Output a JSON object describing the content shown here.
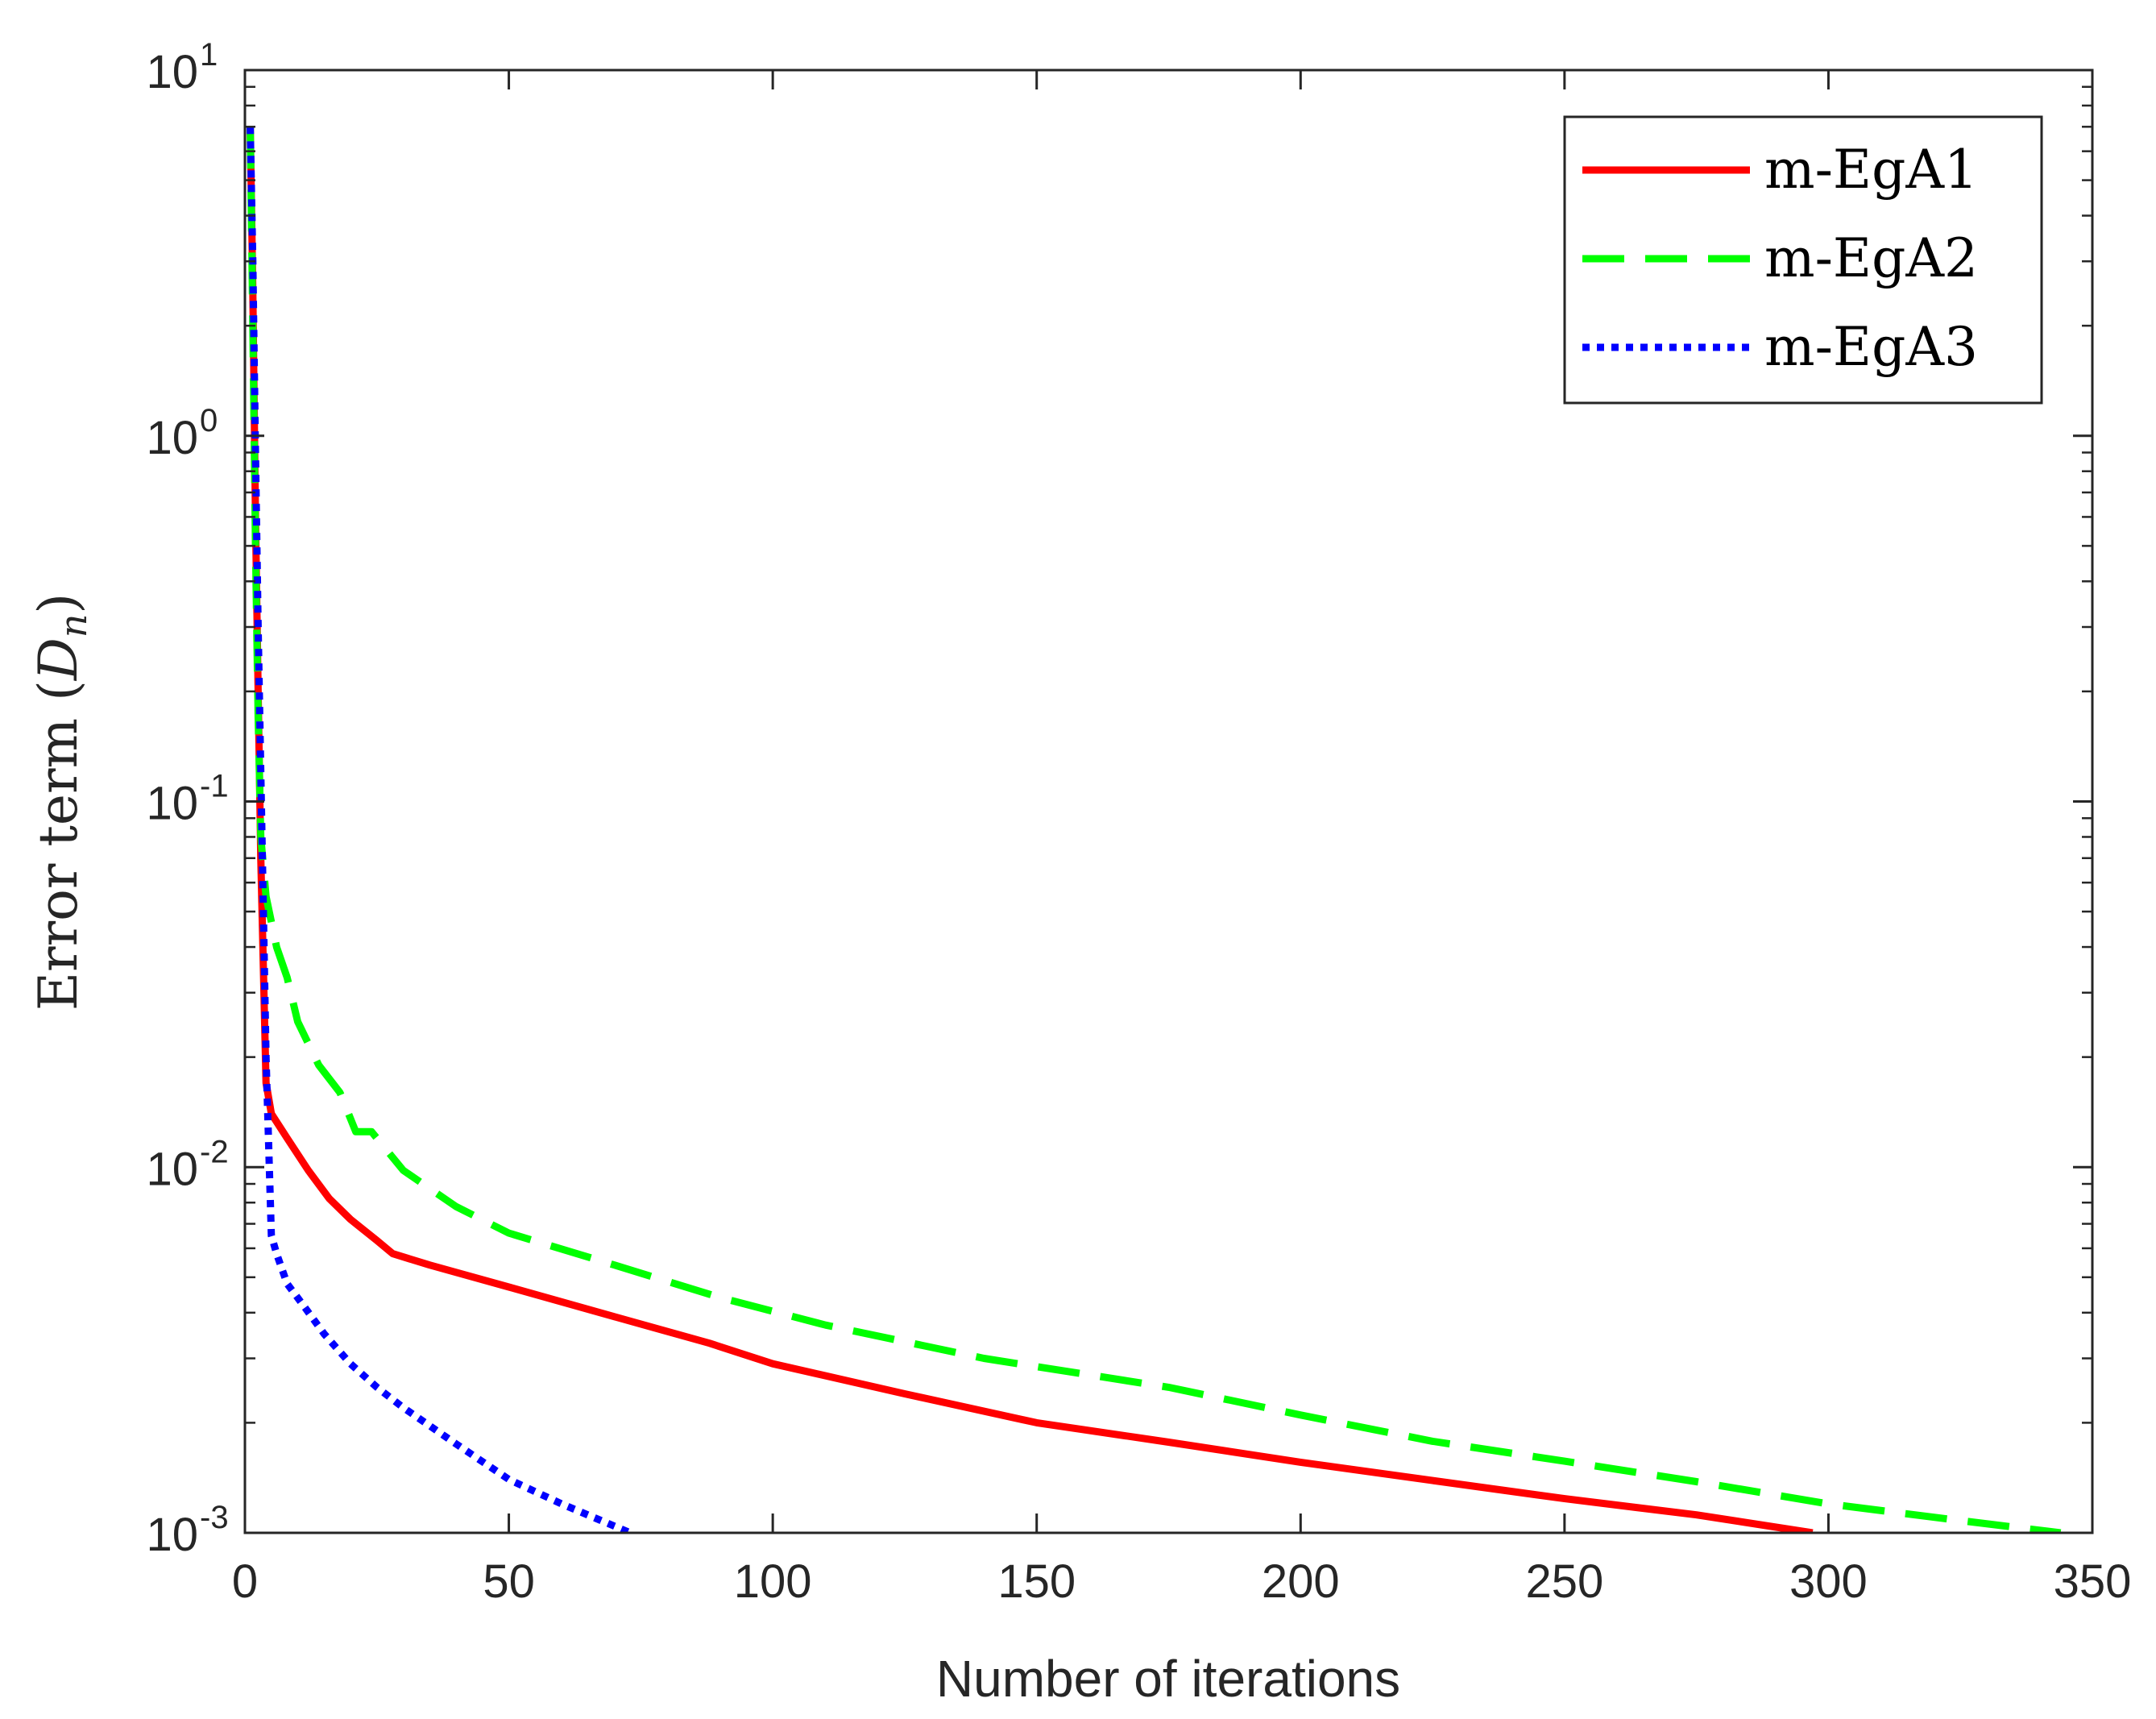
{
  "chart_data": {
    "type": "line",
    "xlabel": "Number of iterations",
    "ylabel": {
      "prefix": "Error term (",
      "symbol": "D",
      "subscript": "n",
      "suffix": ")"
    },
    "x_range": [
      0,
      350
    ],
    "y_range": [
      0.001,
      10
    ],
    "y_scale": "log",
    "grid": false,
    "box": true,
    "legend_position": "top-right",
    "x_ticks": [
      "0",
      "50",
      "100",
      "150",
      "200",
      "250",
      "300",
      "350"
    ],
    "y_ticks": [
      {
        "base": "10",
        "exp": "-3",
        "value": 0.001
      },
      {
        "base": "10",
        "exp": "-2",
        "value": 0.01
      },
      {
        "base": "10",
        "exp": "-1",
        "value": 0.1
      },
      {
        "base": "10",
        "exp": "0",
        "value": 1
      },
      {
        "base": "10",
        "exp": "1",
        "value": 10
      }
    ],
    "series": [
      {
        "name": "m-EgA1",
        "color": "#ff0000",
        "line_style": "solid",
        "points": [
          [
            1,
            7
          ],
          [
            1.5,
            2.5
          ],
          [
            2,
            0.6
          ],
          [
            2.5,
            0.2
          ],
          [
            3,
            0.07
          ],
          [
            3.5,
            0.035
          ],
          [
            4,
            0.017
          ],
          [
            5,
            0.014
          ],
          [
            8,
            0.012
          ],
          [
            12,
            0.0098
          ],
          [
            16,
            0.0082
          ],
          [
            20,
            0.0072
          ],
          [
            25,
            0.0063
          ],
          [
            28,
            0.0058
          ],
          [
            35,
            0.0054
          ],
          [
            50,
            0.0047
          ],
          [
            70,
            0.0039
          ],
          [
            88,
            0.0033
          ],
          [
            100,
            0.0029
          ],
          [
            125,
            0.0024
          ],
          [
            150,
            0.002
          ],
          [
            175,
            0.00177
          ],
          [
            200,
            0.00156
          ],
          [
            225,
            0.00139
          ],
          [
            250,
            0.00124
          ],
          [
            275,
            0.00112
          ],
          [
            297,
            0.001
          ]
        ]
      },
      {
        "name": "m-EgA2",
        "color": "#00ff00",
        "line_style": "dashed",
        "points": [
          [
            1,
            7
          ],
          [
            1.5,
            2.0
          ],
          [
            2,
            0.5
          ],
          [
            2.5,
            0.17
          ],
          [
            3,
            0.08
          ],
          [
            4,
            0.055
          ],
          [
            6,
            0.04
          ],
          [
            8,
            0.033
          ],
          [
            10,
            0.025
          ],
          [
            14,
            0.019
          ],
          [
            18,
            0.016
          ],
          [
            21,
            0.0125
          ],
          [
            24,
            0.0125
          ],
          [
            30,
            0.0098
          ],
          [
            40,
            0.0078
          ],
          [
            50,
            0.0066
          ],
          [
            70,
            0.0054
          ],
          [
            90,
            0.0044
          ],
          [
            110,
            0.0037
          ],
          [
            140,
            0.003
          ],
          [
            175,
            0.0025
          ],
          [
            200,
            0.0021
          ],
          [
            225,
            0.00178
          ],
          [
            250,
            0.00157
          ],
          [
            275,
            0.00138
          ],
          [
            300,
            0.0012
          ],
          [
            325,
            0.00108
          ],
          [
            344,
            0.001
          ]
        ]
      },
      {
        "name": "m-EgA3",
        "color": "#0000ff",
        "line_style": "dotted",
        "points": [
          [
            1,
            7
          ],
          [
            1.5,
            3.0
          ],
          [
            2,
            0.9
          ],
          [
            2.5,
            0.3
          ],
          [
            3,
            0.12
          ],
          [
            3.5,
            0.05
          ],
          [
            4,
            0.02
          ],
          [
            5,
            0.0065
          ],
          [
            6,
            0.0058
          ],
          [
            8,
            0.0048
          ],
          [
            11,
            0.0042
          ],
          [
            15,
            0.0035
          ],
          [
            20,
            0.0029
          ],
          [
            25,
            0.0025
          ],
          [
            30,
            0.0022
          ],
          [
            40,
            0.00175
          ],
          [
            50,
            0.0014
          ],
          [
            60,
            0.0012
          ],
          [
            73,
            0.001
          ]
        ]
      }
    ]
  }
}
